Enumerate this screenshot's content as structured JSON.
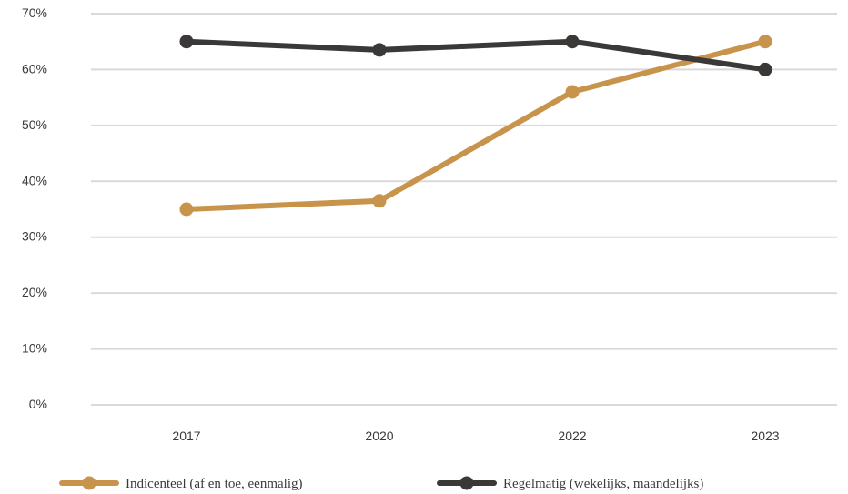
{
  "chart_data": {
    "type": "line",
    "categories": [
      "2017",
      "2020",
      "2022",
      "2023"
    ],
    "series": [
      {
        "name": "Indicenteel (af en toe, eenmalig)",
        "values": [
          35,
          36.5,
          56,
          65
        ],
        "color": "#C8934A"
      },
      {
        "name": "Regelmatig (wekelijks, maandelijks)",
        "values": [
          65,
          63.5,
          65,
          60
        ],
        "color": "#3B3838"
      }
    ],
    "ylim": [
      0,
      70
    ],
    "yticks": [
      "0%",
      "10%",
      "20%",
      "30%",
      "40%",
      "50%",
      "60%",
      "70%"
    ],
    "grid": true,
    "grid_color": "#D9D9D9",
    "legend": "bottom"
  }
}
